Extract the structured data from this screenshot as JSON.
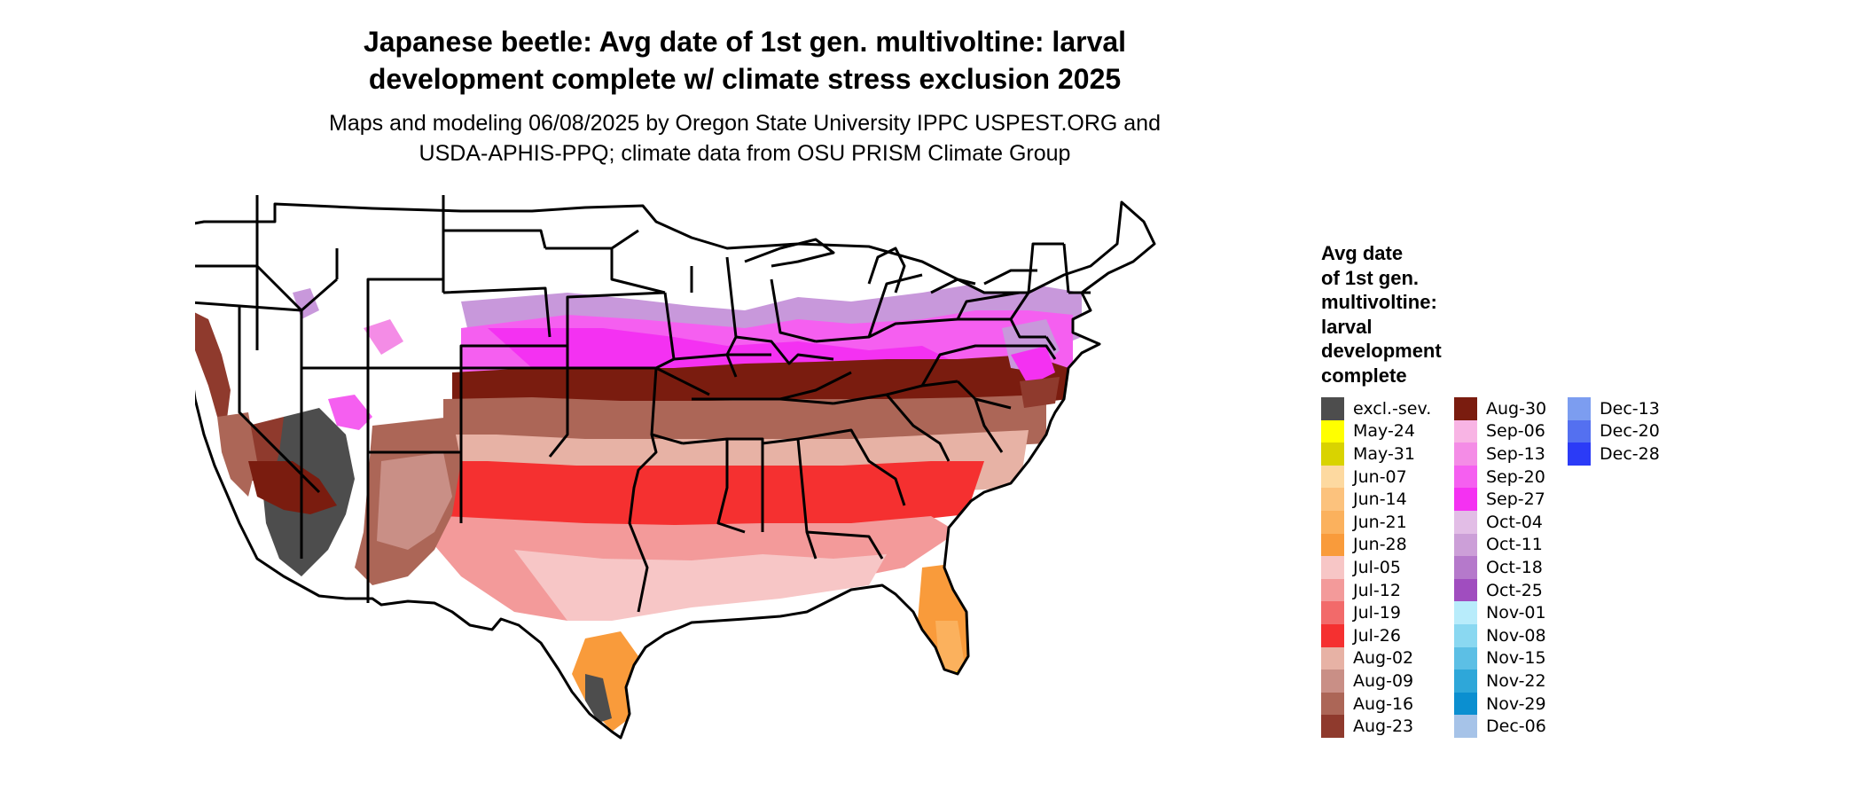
{
  "title_lines": [
    "Japanese beetle: Avg date of 1st gen. multivoltine: larval",
    "development complete w/ climate stress exclusion 2025"
  ],
  "subtitle_lines": [
    "Maps and modeling 06/08/2025 by Oregon State University IPPC USPEST.ORG and",
    "USDA-APHIS-PPQ; climate data from OSU PRISM Climate Group"
  ],
  "legend": {
    "title_lines": [
      "Avg date",
      "of 1st gen.",
      "multivoltine:",
      "larval",
      "development",
      "complete"
    ],
    "columns": [
      [
        {
          "label": "excl.-sev.",
          "color": "#4d4d4d"
        },
        {
          "label": "May-24",
          "color": "#ffff00"
        },
        {
          "label": "May-31",
          "color": "#d9d300"
        },
        {
          "label": "Jun-07",
          "color": "#fdd9a0"
        },
        {
          "label": "Jun-14",
          "color": "#fcc27d"
        },
        {
          "label": "Jun-21",
          "color": "#fbb15d"
        },
        {
          "label": "Jun-28",
          "color": "#f99b3b"
        },
        {
          "label": "Jul-05",
          "color": "#f7c6c6"
        },
        {
          "label": "Jul-12",
          "color": "#f39a9a"
        },
        {
          "label": "Jul-19",
          "color": "#f26a6a"
        },
        {
          "label": "Jul-26",
          "color": "#f53030"
        },
        {
          "label": "Aug-02",
          "color": "#e7b2a5"
        },
        {
          "label": "Aug-09",
          "color": "#c98f86"
        },
        {
          "label": "Aug-16",
          "color": "#ac6657"
        },
        {
          "label": "Aug-23",
          "color": "#8f3a2d"
        }
      ],
      [
        {
          "label": "Aug-30",
          "color": "#7a1c0f"
        },
        {
          "label": "Sep-06",
          "color": "#f8b4e4"
        },
        {
          "label": "Sep-13",
          "color": "#f48ce6"
        },
        {
          "label": "Sep-20",
          "color": "#f55ff0"
        },
        {
          "label": "Sep-27",
          "color": "#f431f2"
        },
        {
          "label": "Oct-04",
          "color": "#e2bde6"
        },
        {
          "label": "Oct-11",
          "color": "#cc9fd8"
        },
        {
          "label": "Oct-18",
          "color": "#b579cb"
        },
        {
          "label": "Oct-25",
          "color": "#a04dbf"
        },
        {
          "label": "Nov-01",
          "color": "#b8ecfb"
        },
        {
          "label": "Nov-08",
          "color": "#8ad8f1"
        },
        {
          "label": "Nov-15",
          "color": "#5cbfe5"
        },
        {
          "label": "Nov-22",
          "color": "#2ea7d9"
        },
        {
          "label": "Nov-29",
          "color": "#0b8fd0"
        },
        {
          "label": "Dec-06",
          "color": "#a6c3e8"
        }
      ],
      [
        {
          "label": "Dec-13",
          "color": "#7c9df0"
        },
        {
          "label": "Dec-20",
          "color": "#5470f0"
        },
        {
          "label": "Dec-28",
          "color": "#2b3bf7"
        }
      ]
    ]
  }
}
